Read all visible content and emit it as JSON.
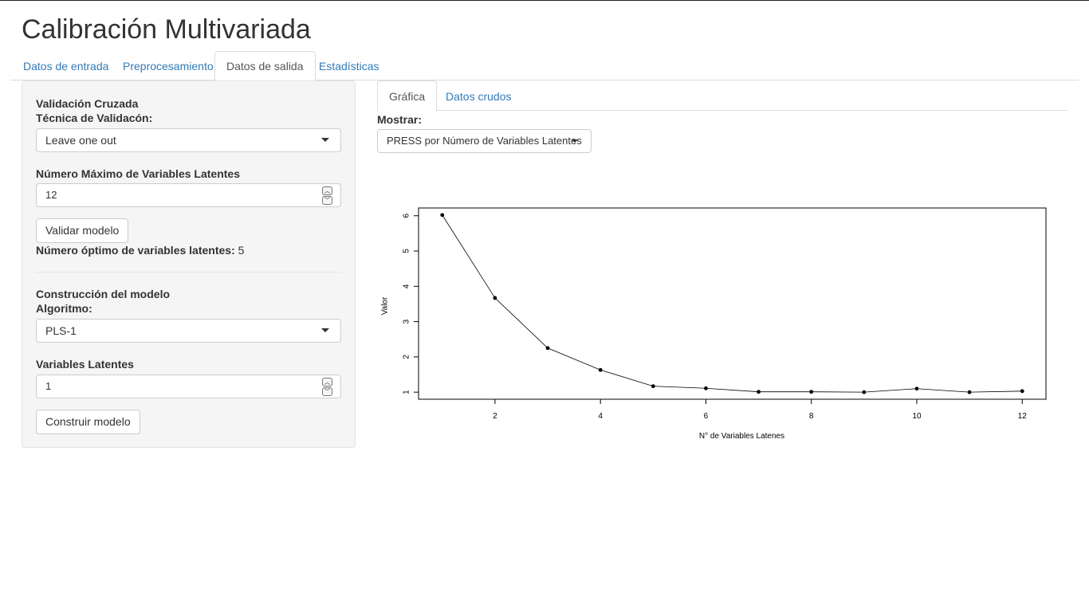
{
  "app": {
    "title": "Calibración Multivariada"
  },
  "main_tabs": [
    {
      "label": "Datos de entrada",
      "active": false
    },
    {
      "label": "Preprocesamiento",
      "active": false
    },
    {
      "label": "Datos de salida",
      "active": true
    },
    {
      "label": "Estadísticas",
      "active": false
    }
  ],
  "sidebar": {
    "cv_heading": "Validación Cruzada",
    "technique_label": "Técnica de Validacón:",
    "technique_value": "Leave one out",
    "max_lv_label": "Número Máximo de Variables Latentes",
    "max_lv_value": "12",
    "validate_button": "Validar modelo",
    "optimal_label": "Número óptimo de variables latentes:",
    "optimal_value": "5",
    "build_heading": "Construcción del modelo",
    "algorithm_label": "Algoritmo:",
    "algorithm_value": "PLS-1",
    "lv_label": "Variables Latentes",
    "lv_value": "1",
    "build_button": "Construir modelo"
  },
  "output": {
    "sub_tabs": [
      {
        "label": "Gráfica",
        "active": true
      },
      {
        "label": "Datos crudos",
        "active": false
      }
    ],
    "show_label": "Mostrar:",
    "show_value": "PRESS por Número de Variables Latentes"
  },
  "chart_data": {
    "type": "line",
    "title": "",
    "xlabel": "N° de Variables Latenes",
    "ylabel": "Valor",
    "x": [
      1,
      2,
      3,
      4,
      5,
      6,
      7,
      8,
      9,
      10,
      11,
      12
    ],
    "y": [
      6.02,
      3.67,
      2.25,
      1.63,
      1.17,
      1.11,
      1.01,
      1.01,
      1.0,
      1.1,
      1.0,
      1.03
    ],
    "xticks": [
      "2",
      "4",
      "6",
      "8",
      "10",
      "12"
    ],
    "yticks": [
      "1",
      "2",
      "3",
      "4",
      "5",
      "6"
    ],
    "xlim": [
      0.55,
      12.45
    ],
    "ylim": [
      0.8,
      6.22
    ],
    "grid": false,
    "legend": "none"
  }
}
